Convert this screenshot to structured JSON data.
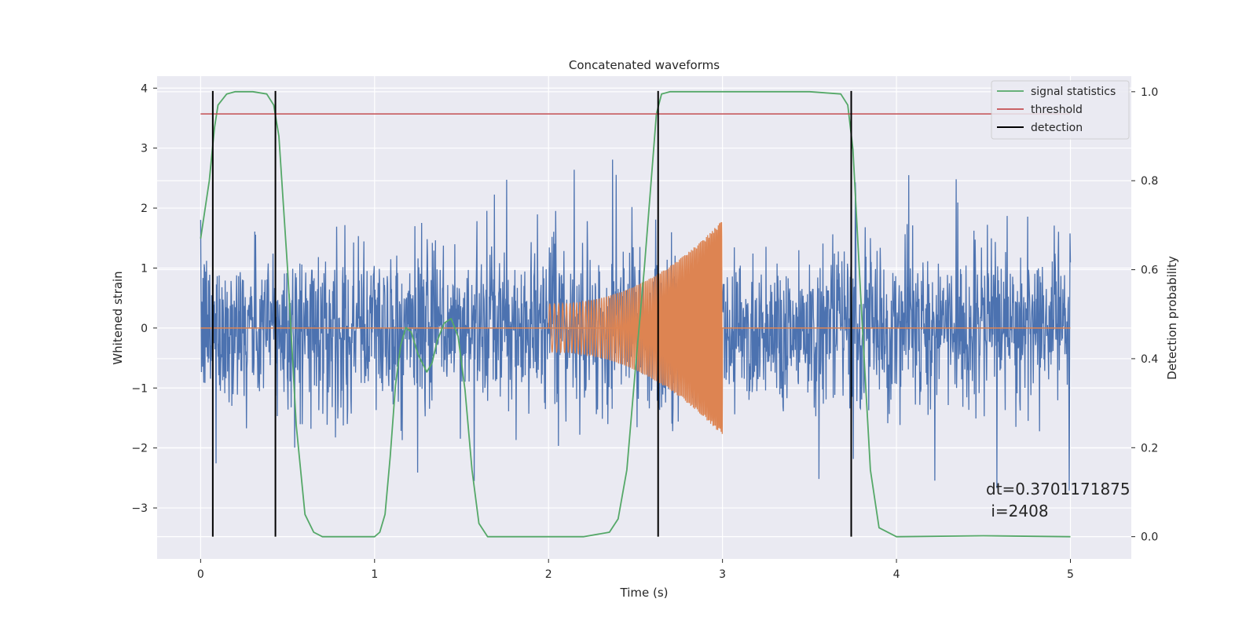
{
  "chart_data": {
    "type": "line",
    "title": "Concatenated waveforms",
    "xlabel": "Time (s)",
    "ylabel": "Whitened strain",
    "y2label": "Detection probability",
    "xlim": [
      -0.25,
      5.35
    ],
    "ylim": [
      -3.85,
      4.2
    ],
    "y2lim": [
      -0.05,
      1.035
    ],
    "xticks": [
      0,
      1,
      2,
      3,
      4,
      5
    ],
    "xtick_labels": [
      "0",
      "1",
      "2",
      "3",
      "4",
      "5"
    ],
    "yticks": [
      -3,
      -2,
      -1,
      0,
      1,
      2,
      3,
      4
    ],
    "ytick_labels": [
      "−3",
      "−2",
      "−1",
      "0",
      "1",
      "2",
      "3",
      "4"
    ],
    "y2ticks": [
      0.0,
      0.2,
      0.4,
      0.6,
      0.8,
      1.0
    ],
    "y2tick_labels": [
      "0.0",
      "0.2",
      "0.4",
      "0.6",
      "0.8",
      "1.0"
    ],
    "grid": true,
    "legend_position": "top-right",
    "legend": [
      "signal statistics",
      "threshold",
      "detection"
    ],
    "colors": {
      "strain": "#4c72b0",
      "injection": "#dd8452",
      "signal_statistics": "#55a868",
      "threshold": "#c44e52",
      "detection": "#000000",
      "background": "#eaeaf2",
      "grid": "#ffffff"
    },
    "strain": {
      "t_start": 0,
      "t_end": 5,
      "noise_sigma": 0.65,
      "typical_max": 3.1,
      "typical_min": -3.3
    },
    "injection": {
      "t_start": 2.0,
      "t_end": 3.0,
      "amplitude_start": 0.4,
      "amplitude_end": 1.8,
      "mean_offset": 0.0
    },
    "signal_statistics": {
      "x": [
        0,
        0.05,
        0.08,
        0.1,
        0.15,
        0.2,
        0.3,
        0.38,
        0.42,
        0.45,
        0.5,
        0.55,
        0.6,
        0.65,
        0.7,
        0.8,
        1.0,
        1.03,
        1.06,
        1.09,
        1.12,
        1.15,
        1.18,
        1.21,
        1.25,
        1.3,
        1.33,
        1.36,
        1.4,
        1.44,
        1.48,
        1.52,
        1.56,
        1.6,
        1.65,
        1.8,
        2.0,
        2.2,
        2.35,
        2.4,
        2.45,
        2.5,
        2.55,
        2.6,
        2.62,
        2.65,
        2.7,
        2.8,
        3.0,
        3.5,
        3.68,
        3.72,
        3.75,
        3.8,
        3.85,
        3.9,
        4.0,
        4.5,
        5.0
      ],
      "y": [
        0.67,
        0.8,
        0.92,
        0.97,
        0.995,
        1.0,
        1.0,
        0.995,
        0.97,
        0.9,
        0.6,
        0.25,
        0.05,
        0.01,
        0.0,
        0.0,
        0.0,
        0.01,
        0.05,
        0.18,
        0.34,
        0.43,
        0.47,
        0.46,
        0.41,
        0.37,
        0.39,
        0.44,
        0.48,
        0.49,
        0.45,
        0.33,
        0.15,
        0.03,
        0.0,
        0.0,
        0.0,
        0.0,
        0.01,
        0.04,
        0.15,
        0.38,
        0.6,
        0.85,
        0.95,
        0.995,
        1.0,
        1.0,
        1.0,
        1.0,
        0.995,
        0.97,
        0.87,
        0.5,
        0.15,
        0.02,
        0.0,
        0.002,
        0.0
      ]
    },
    "threshold": {
      "value": 0.95,
      "x_start": 0,
      "x_end": 5
    },
    "detections": [
      0.07,
      0.43,
      2.63,
      3.74
    ],
    "annotation": {
      "dt": "dt=0.3701171875",
      "i": " i=2408"
    }
  }
}
